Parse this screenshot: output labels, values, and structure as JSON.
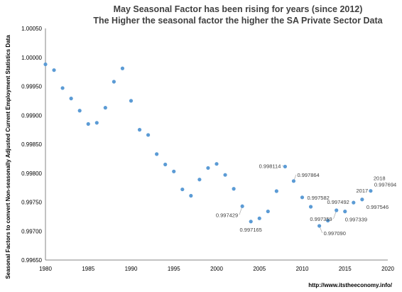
{
  "chart_data": {
    "type": "scatter",
    "title_line1": "May Seasonal Factor has been rising for years (since 2012)",
    "title_line2": "The Higher the seasonal factor the higher the SA Private Sector Data",
    "ylabel": "Seasonal Factors to convert Non-seasonally Adjusted Current Employment Statistics Data",
    "xlabel": "",
    "xlim": [
      1980,
      2020
    ],
    "ylim": [
      0.9965,
      1.0005
    ],
    "x_ticks": [
      "1980",
      "1985",
      "1990",
      "1995",
      "2000",
      "2005",
      "2010",
      "2015",
      "2020"
    ],
    "y_ticks": [
      "0.99650",
      "0.99700",
      "0.99750",
      "0.99800",
      "0.99850",
      "0.99900",
      "0.99950",
      "1.00000",
      "1.00050"
    ],
    "point_color": "#5b9bd5",
    "grid": false,
    "points": [
      {
        "x": 1980,
        "y": 0.99988
      },
      {
        "x": 1981,
        "y": 0.99978
      },
      {
        "x": 1982,
        "y": 0.99947
      },
      {
        "x": 1983,
        "y": 0.99929
      },
      {
        "x": 1984,
        "y": 0.99908
      },
      {
        "x": 1985,
        "y": 0.99885
      },
      {
        "x": 1986,
        "y": 0.99887
      },
      {
        "x": 1987,
        "y": 0.99913
      },
      {
        "x": 1988,
        "y": 0.99958
      },
      {
        "x": 1989,
        "y": 0.99981
      },
      {
        "x": 1990,
        "y": 0.99925
      },
      {
        "x": 1991,
        "y": 0.99875
      },
      {
        "x": 1992,
        "y": 0.99866
      },
      {
        "x": 1993,
        "y": 0.99833
      },
      {
        "x": 1994,
        "y": 0.99815
      },
      {
        "x": 1995,
        "y": 0.99803
      },
      {
        "x": 1996,
        "y": 0.99772
      },
      {
        "x": 1997,
        "y": 0.99761
      },
      {
        "x": 1998,
        "y": 0.99789
      },
      {
        "x": 1999,
        "y": 0.99809
      },
      {
        "x": 2000,
        "y": 0.99816
      },
      {
        "x": 2001,
        "y": 0.99797
      },
      {
        "x": 2002,
        "y": 0.99773
      },
      {
        "x": 2003,
        "y": 0.997429
      },
      {
        "x": 2004,
        "y": 0.997165
      },
      {
        "x": 2005,
        "y": 0.99722
      },
      {
        "x": 2006,
        "y": 0.99734
      },
      {
        "x": 2007,
        "y": 0.99769
      },
      {
        "x": 2008,
        "y": 0.998114
      },
      {
        "x": 2009,
        "y": 0.997864
      },
      {
        "x": 2010,
        "y": 0.997582
      },
      {
        "x": 2011,
        "y": 0.99742
      },
      {
        "x": 2012,
        "y": 0.99709
      },
      {
        "x": 2013,
        "y": 0.99718
      },
      {
        "x": 2014,
        "y": 0.997359
      },
      {
        "x": 2015,
        "y": 0.997339
      },
      {
        "x": 2016,
        "y": 0.997492
      },
      {
        "x": 2017,
        "y": 0.997546
      },
      {
        "x": 2018,
        "y": 0.997694
      }
    ],
    "annotations": [
      {
        "text": "0.997429",
        "x": 2003,
        "anchor": "end",
        "pos": "below-left",
        "leader": true
      },
      {
        "text": "0.997165",
        "x": 2004,
        "anchor": "middle",
        "pos": "below",
        "leader": false
      },
      {
        "text": "0.998114",
        "x": 2008,
        "anchor": "end",
        "pos": "left",
        "leader": true
      },
      {
        "text": "0.997864",
        "x": 2009,
        "anchor": "start",
        "pos": "above-right",
        "leader": true
      },
      {
        "text": "0.997582",
        "x": 2010,
        "anchor": "start",
        "pos": "right",
        "leader": false
      },
      {
        "text": "0.997359",
        "x": 2014,
        "anchor": "end",
        "pos": "below-left",
        "leader": true
      },
      {
        "text": "0.997090",
        "x": 2012,
        "anchor": "start",
        "pos": "below-right",
        "leader": true
      },
      {
        "text": "0.997492",
        "x": 2016,
        "anchor": "end",
        "pos": "left",
        "leader": false
      },
      {
        "text": "0.997339",
        "x": 2015,
        "anchor": "start",
        "pos": "below",
        "leader": false
      },
      {
        "text": "2017",
        "x": 2017,
        "anchor": "middle",
        "pos": "above",
        "leader": false
      },
      {
        "text": "0.997546",
        "x": 2017,
        "anchor": "start",
        "pos": "below-right",
        "leader": false
      },
      {
        "text": "2018",
        "x": 2018,
        "anchor": "start",
        "pos": "above2",
        "leader": false
      },
      {
        "text": "0.997694",
        "x": 2018,
        "anchor": "start",
        "pos": "above-right",
        "leader": false
      }
    ],
    "credit": "http://www.itstheeconomy.info/"
  }
}
